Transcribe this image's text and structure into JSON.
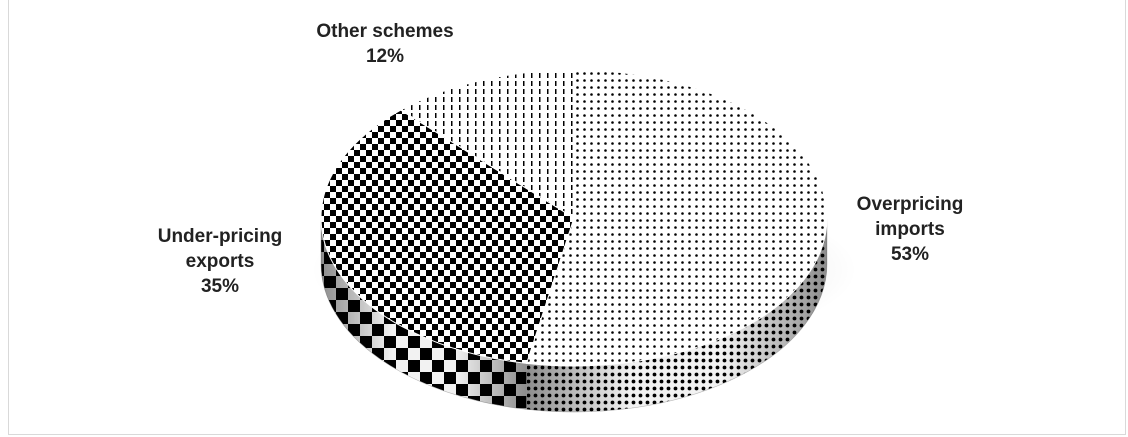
{
  "chart_data": {
    "type": "pie",
    "style": "3d",
    "title": "",
    "slices": [
      {
        "name_lines": [
          "Overpricing",
          "imports"
        ],
        "pct_label": "53%",
        "value": 53,
        "pattern": "dots"
      },
      {
        "name_lines": [
          "Under-pricing",
          "exports"
        ],
        "pct_label": "35%",
        "value": 35,
        "pattern": "checkerboard"
      },
      {
        "name_lines": [
          "Other schemes"
        ],
        "pct_label": "12%",
        "value": 12,
        "pattern": "dashed-vertical"
      }
    ],
    "legend": "none",
    "data_labels": "category name and percentage"
  },
  "colors": {
    "ink": "#000000",
    "paper": "#ffffff",
    "label_text": "#222222",
    "frame_border": "#d9d9d9"
  }
}
